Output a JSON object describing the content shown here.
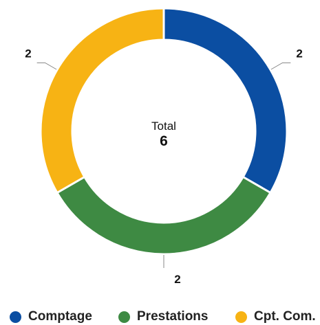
{
  "chart_data": {
    "type": "pie",
    "categories": [
      "Comptage",
      "Prestations",
      "Cpt. Com."
    ],
    "values": [
      2,
      2,
      2
    ],
    "colors": [
      "#0b4ea2",
      "#3e8a43",
      "#f7b314"
    ],
    "center_label": "Total",
    "center_value": "6",
    "data_labels": [
      "2",
      "2",
      "2"
    ],
    "legend_position": "bottom"
  }
}
